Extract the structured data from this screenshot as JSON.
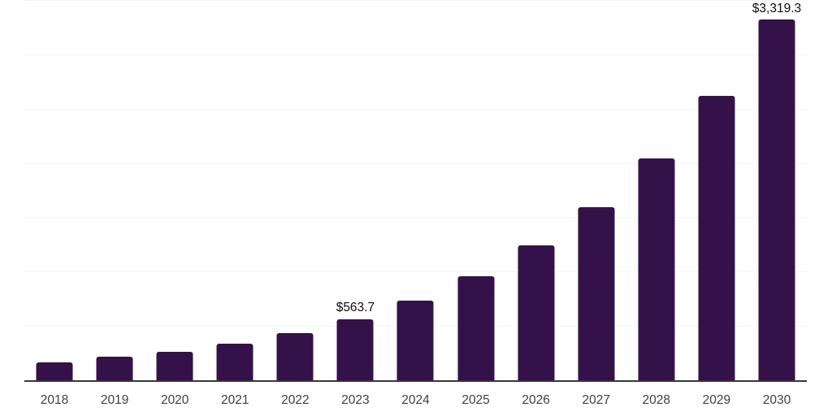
{
  "chart_data": {
    "type": "bar",
    "title": "",
    "xlabel": "",
    "ylabel": "",
    "categories": [
      "2018",
      "2019",
      "2020",
      "2021",
      "2022",
      "2023",
      "2024",
      "2025",
      "2026",
      "2027",
      "2028",
      "2029",
      "2030"
    ],
    "values": [
      165,
      215,
      260,
      335,
      435,
      563.7,
      730,
      955,
      1245,
      1595,
      2040,
      2615,
      3319.3
    ],
    "data_labels": [
      "",
      "",
      "",
      "",
      "",
      "$563.7",
      "",
      "",
      "",
      "",
      "",
      "",
      "$3,319.3"
    ],
    "ylim": [
      0,
      3500
    ],
    "gridline_step": 500,
    "grid": true,
    "legend": false,
    "y_axis_labels_visible": false,
    "colors": {
      "bar": "#35114A",
      "axis_line": "#37363B",
      "gridline": "#F4F4F6",
      "data_label": "#0C0C0C",
      "tick_label": "#404040",
      "background": "#FFFFFF"
    }
  }
}
